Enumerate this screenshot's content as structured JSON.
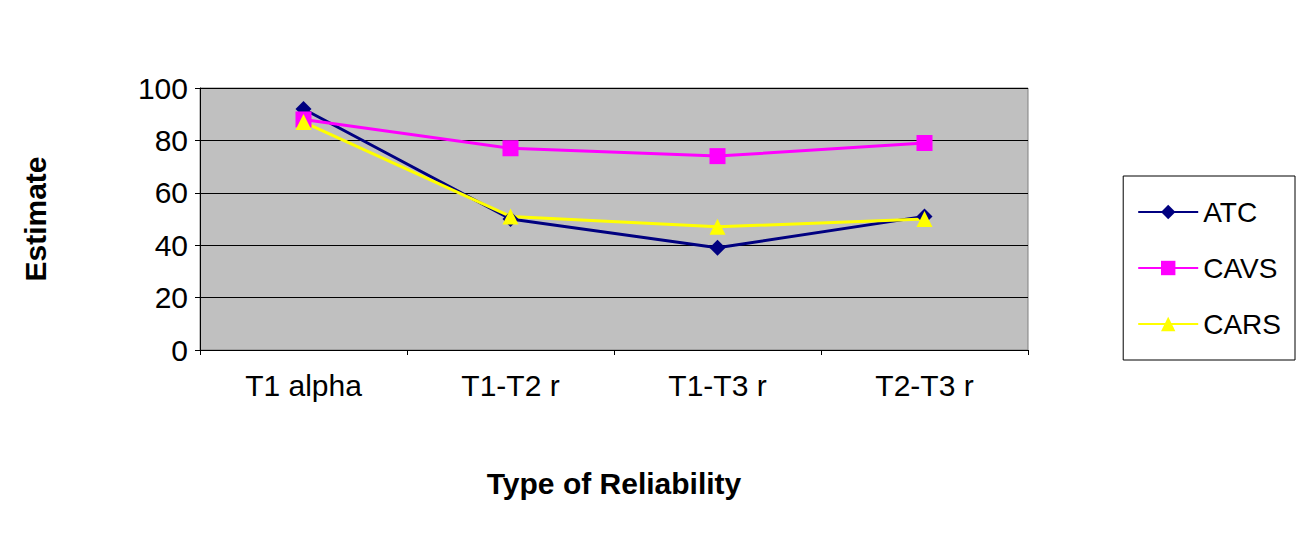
{
  "chart_data": {
    "type": "line",
    "x_label": "Type of Reliability",
    "y_label": "Estimate",
    "categories": [
      "T1 alpha",
      "T1-T2 r",
      "T1-T3 r",
      "T2-T3 r"
    ],
    "series": [
      {
        "name": "ATC",
        "color": "#000080",
        "marker": "diamond",
        "values": [
          92,
          50,
          39,
          51
        ]
      },
      {
        "name": "CAVS",
        "color": "#FF00FF",
        "marker": "square",
        "values": [
          88,
          77,
          74,
          79
        ]
      },
      {
        "name": "CARS",
        "color": "#FFFF00",
        "marker": "triangle",
        "values": [
          87,
          51,
          47,
          50
        ]
      }
    ],
    "ylim": [
      0,
      100
    ],
    "yticks": [
      0,
      20,
      40,
      60,
      80,
      100
    ],
    "grid": true,
    "legend": "right"
  }
}
